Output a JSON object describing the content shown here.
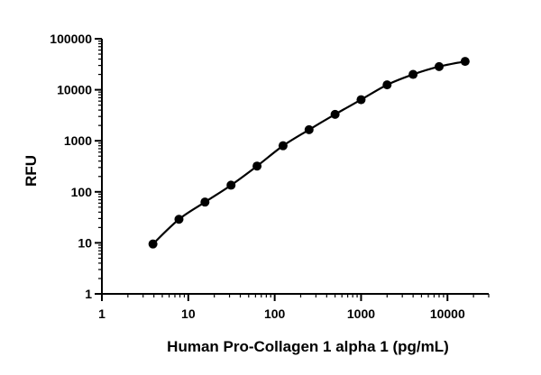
{
  "chart_data": {
    "type": "scatter",
    "xlabel": "Human Pro-Collagen 1 alpha 1 (pg/mL)",
    "ylabel": "RFU",
    "x_scale": "log",
    "y_scale": "log",
    "xlim": [
      1,
      30000
    ],
    "ylim": [
      1,
      100000
    ],
    "x_ticks": [
      {
        "value": 1,
        "label": "1"
      },
      {
        "value": 10,
        "label": "10"
      },
      {
        "value": 100,
        "label": "100"
      },
      {
        "value": 1000,
        "label": "1000"
      },
      {
        "value": 10000,
        "label": "10000"
      }
    ],
    "y_ticks": [
      {
        "value": 1,
        "label": "1"
      },
      {
        "value": 10,
        "label": "10"
      },
      {
        "value": 100,
        "label": "100"
      },
      {
        "value": 1000,
        "label": "1000"
      },
      {
        "value": 10000,
        "label": "10000"
      },
      {
        "value": 100000,
        "label": "100000"
      }
    ],
    "grid": false,
    "series": [
      {
        "points": [
          {
            "x": 3.9,
            "y": 9.5
          },
          {
            "x": 7.8,
            "y": 29
          },
          {
            "x": 15.6,
            "y": 63
          },
          {
            "x": 31.25,
            "y": 135
          },
          {
            "x": 62.5,
            "y": 320
          },
          {
            "x": 125,
            "y": 800
          },
          {
            "x": 250,
            "y": 1650
          },
          {
            "x": 500,
            "y": 3300
          },
          {
            "x": 1000,
            "y": 6400
          },
          {
            "x": 2000,
            "y": 12500
          },
          {
            "x": 4000,
            "y": 20000
          },
          {
            "x": 8000,
            "y": 28500
          },
          {
            "x": 16000,
            "y": 36000
          }
        ],
        "fit_curve": true
      }
    ]
  }
}
